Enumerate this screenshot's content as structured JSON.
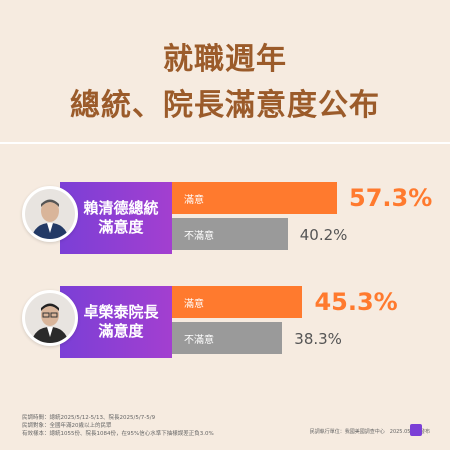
{
  "title_line1": "就職週年",
  "title_line2": "總統、院長滿意度公布",
  "colors": {
    "satisfied": "#ff7a2e",
    "dissatisfied": "#9a9a9a",
    "name_band": "#7b3fd6",
    "title": "#9b5b2a",
    "background": "#f6ebe0"
  },
  "rows": [
    {
      "name_line1": "賴清德總統",
      "name_line2": "滿意度",
      "sat_label": "滿意",
      "dis_label": "不滿意",
      "sat_value_text": "57.3%",
      "dis_value_text": "40.2%"
    },
    {
      "name_line1": "卓榮泰院長",
      "name_line2": "滿意度",
      "sat_label": "滿意",
      "dis_label": "不滿意",
      "sat_value_text": "45.3%",
      "dis_value_text": "38.3%"
    }
  ],
  "notes": {
    "line1": "民調時間：總統2025/5/12-5/13、院長2025/5/7-5/9",
    "line2": "民調對象：全國年滿20歲以上的民眾",
    "line3": "有效樣本：總統1055份、院長1084份，在95%信心水準下抽樣誤差正負3.0%"
  },
  "footer_text": "民調執行單位：我國美國調查中心　2025.05.16 發布",
  "chart_data": {
    "type": "bar",
    "categories": [
      "賴清德總統滿意度",
      "卓榮泰院長滿意度"
    ],
    "series": [
      {
        "name": "滿意",
        "values": [
          57.3,
          45.3
        ]
      },
      {
        "name": "不滿意",
        "values": [
          40.2,
          38.3
        ]
      }
    ],
    "title": "就職週年 總統、院長滿意度公布",
    "xlabel": "",
    "ylabel": "",
    "ylim": [
      0,
      100
    ]
  }
}
